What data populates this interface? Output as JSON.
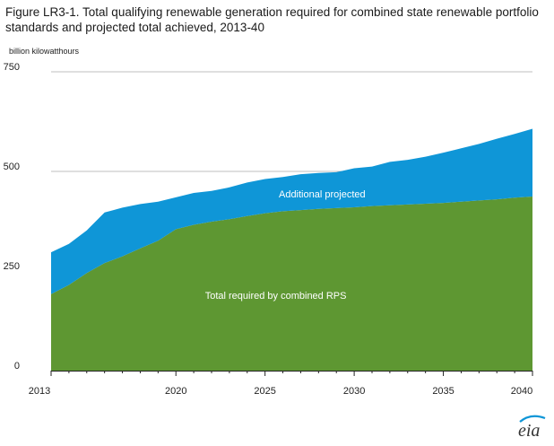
{
  "title": "Figure LR3-1. Total qualifying renewable generation required for combined state renewable portfolio standards and projected total achieved, 2013-40",
  "units_label": "billion  kilowatthours",
  "logo_text": "eia",
  "colors": {
    "rps": "#5e9732",
    "projected": "#0f96d7",
    "grid": "#bfbfbf",
    "axis": "#222222"
  },
  "chart_data": {
    "type": "area",
    "stacked": true,
    "title": "Figure LR3-1. Total qualifying renewable generation required for combined state renewable portfolio standards and projected total achieved, 2013-40",
    "ylabel": "billion  kilowatthours",
    "xlabel": "",
    "xlim": [
      2013,
      2040
    ],
    "ylim": [
      0,
      750
    ],
    "grid": "horizontal",
    "x_ticks": [
      "2013",
      "2020",
      "2025",
      "2030",
      "2035",
      "2040"
    ],
    "y_ticks": [
      "0",
      "250",
      "500",
      "750"
    ],
    "x": [
      2013,
      2014,
      2015,
      2016,
      2017,
      2018,
      2019,
      2020,
      2021,
      2022,
      2023,
      2024,
      2025,
      2026,
      2027,
      2028,
      2029,
      2030,
      2031,
      2032,
      2033,
      2034,
      2035,
      2036,
      2037,
      2038,
      2039,
      2040
    ],
    "series": [
      {
        "name": "Total required by combined RPS",
        "values": [
          192,
          215,
          245,
          270,
          287,
          307,
          326,
          355,
          366,
          374,
          380,
          388,
          395,
          400,
          403,
          406,
          408,
          410,
          413,
          415,
          417,
          419,
          421,
          424,
          427,
          430,
          434,
          437
        ]
      },
      {
        "name": "Additional projected",
        "values": [
          105,
          103,
          107,
          127,
          122,
          111,
          98,
          80,
          80,
          77,
          80,
          84,
          86,
          86,
          90,
          90,
          90,
          98,
          99,
          109,
          112,
          118,
          126,
          134,
          142,
          152,
          160,
          170
        ]
      }
    ],
    "labels": [
      {
        "text": "Additional projected",
        "x": 2028.2,
        "y": 435
      },
      {
        "text": "Total required by combined RPS",
        "x": 2025.6,
        "y": 180
      }
    ]
  }
}
